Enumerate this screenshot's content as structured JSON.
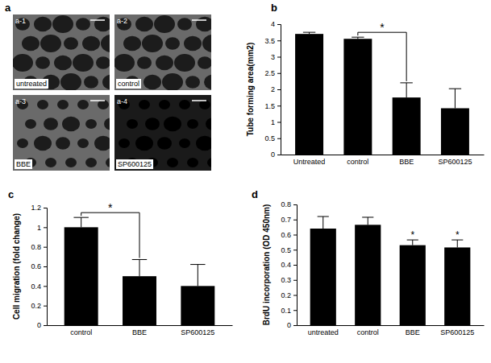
{
  "panel_a": {
    "label": "a",
    "images": [
      {
        "tag": "a-1",
        "caption": "untreated"
      },
      {
        "tag": "a-2",
        "caption": "control"
      },
      {
        "tag": "a-3",
        "caption": "BBE"
      },
      {
        "tag": "a-4",
        "caption": "SP600125"
      }
    ]
  },
  "chart_data": [
    {
      "type": "bar",
      "label": "b",
      "y_label": "Tube forming area(mm2)",
      "categories": [
        "Untreated",
        "control",
        "BBE",
        "SP600125"
      ],
      "values": [
        3.7,
        3.55,
        1.75,
        1.42
      ],
      "errors": [
        0.05,
        0.05,
        0.45,
        0.6
      ],
      "color": "#000000",
      "ylim": [
        0,
        4
      ],
      "yticks": [
        0,
        0.5,
        1,
        1.5,
        2,
        2.5,
        3,
        3.5,
        4
      ],
      "grid": false,
      "annotations": [
        {
          "text": "*",
          "between": [
            "control",
            "BBE"
          ]
        }
      ]
    },
    {
      "type": "bar",
      "label": "c",
      "y_label": "Cell migration (fold change)",
      "categories": [
        "control",
        "BBE",
        "SP600125"
      ],
      "values": [
        1.0,
        0.5,
        0.4
      ],
      "errors": [
        0.1,
        0.17,
        0.22
      ],
      "color": "#000000",
      "ylim": [
        0,
        1.2
      ],
      "yticks": [
        0,
        0.2,
        0.4,
        0.6,
        0.8,
        1,
        1.2
      ],
      "grid": false,
      "annotations": [
        {
          "text": "*",
          "between": [
            "control",
            "BBE"
          ]
        }
      ]
    },
    {
      "type": "bar",
      "label": "d",
      "y_label": "BrdU incorporation (OD 450nm)",
      "categories": [
        "untreated",
        "control",
        "BBE",
        "SP600125"
      ],
      "values": [
        0.64,
        0.665,
        0.53,
        0.515
      ],
      "errors": [
        0.08,
        0.05,
        0.035,
        0.05
      ],
      "color": "#000000",
      "ylim": [
        0,
        0.8
      ],
      "yticks": [
        0,
        0.1,
        0.2,
        0.3,
        0.4,
        0.5,
        0.6,
        0.7,
        0.8
      ],
      "grid": false,
      "annotations": [
        {
          "text": "*",
          "category": "BBE"
        },
        {
          "text": "*",
          "category": "SP600125"
        }
      ]
    }
  ]
}
